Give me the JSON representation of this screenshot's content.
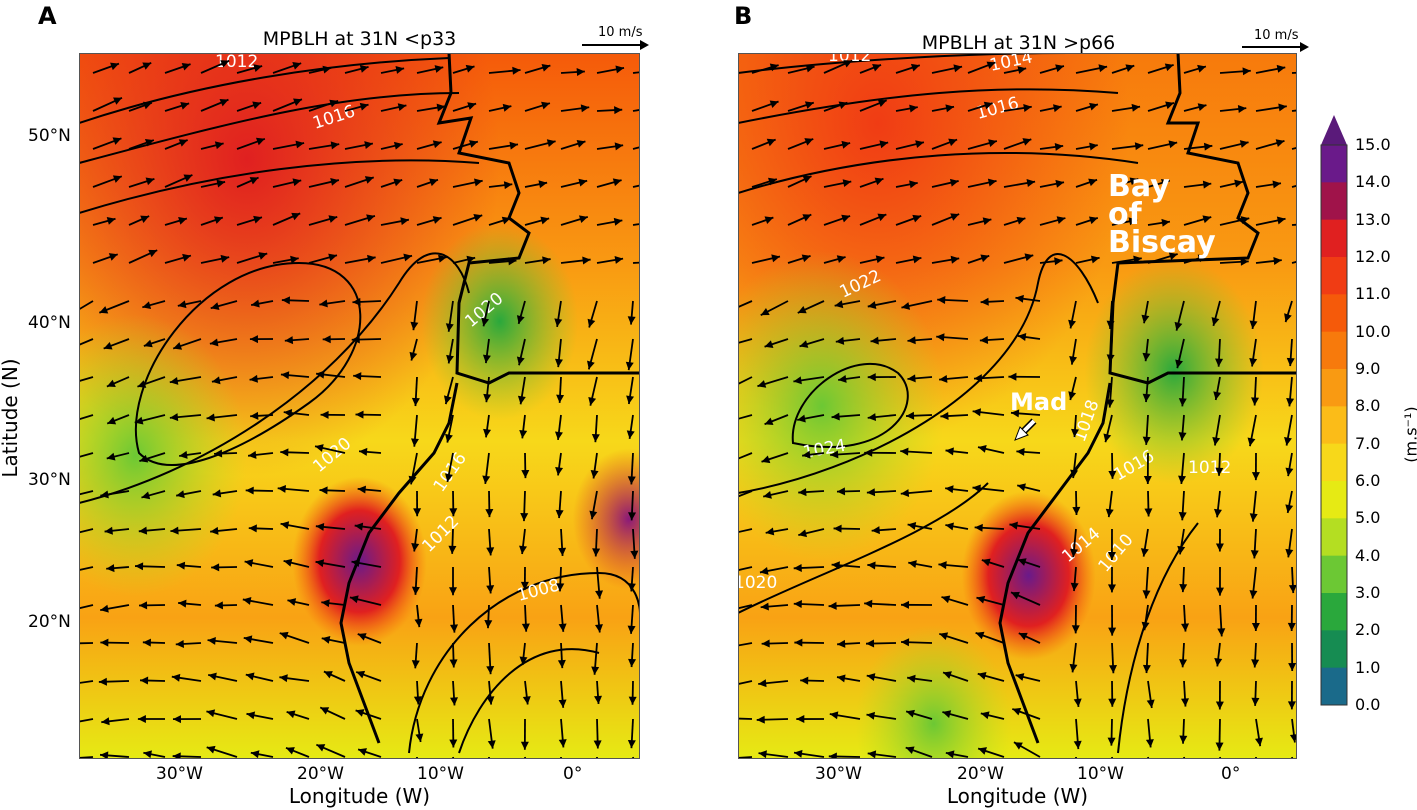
{
  "panels": [
    {
      "letter": "A",
      "title": "MPBLH at 31N <p33",
      "scale_label": "10 m/s",
      "xticks": [
        "30°W",
        "20°W",
        "10°W",
        "0°"
      ],
      "yticks": [
        "50°N",
        "40°N",
        "30°N",
        "20°N"
      ],
      "xlabel": "Longitude (W)",
      "ylabel": "Latitude (N)",
      "isobar_labels": [
        "1012",
        "1016",
        "1020",
        "1016",
        "1020",
        "1016",
        "1012",
        "1008"
      ],
      "annotations": []
    },
    {
      "letter": "B",
      "title": "MPBLH at 31N >p66",
      "scale_label": "10 m/s",
      "xticks": [
        "30°W",
        "20°W",
        "10°W",
        "0°"
      ],
      "xlabel": "Longitude (W)",
      "isobar_labels": [
        "1012",
        "1014",
        "1016",
        "1022",
        "1024",
        "1018",
        "1016",
        "1012",
        "1014",
        "1010",
        "1020"
      ],
      "annotations": [
        "Bay",
        "of",
        "Biscay",
        "Mad"
      ]
    }
  ],
  "colorbar": {
    "ticks": [
      "15.0",
      "14.0",
      "13.0",
      "12.0",
      "11.0",
      "10.0",
      "9.0",
      "8.0",
      "7.0",
      "6.0",
      "5.0",
      "4.0",
      "3.0",
      "2.0",
      "1.0",
      "0.0"
    ],
    "unit": "(m.s⁻¹)",
    "colors": [
      "#6a1a8a",
      "#a0134a",
      "#e02020",
      "#f03c14",
      "#f55a0a",
      "#f77a0c",
      "#f99a12",
      "#fbbc18",
      "#f7d81a",
      "#e6ea14",
      "#b4de22",
      "#6cc834",
      "#2aa83c",
      "#168c52",
      "#1a6a8a",
      "#2050d0"
    ],
    "extend_color": "#5a1a7a"
  }
}
